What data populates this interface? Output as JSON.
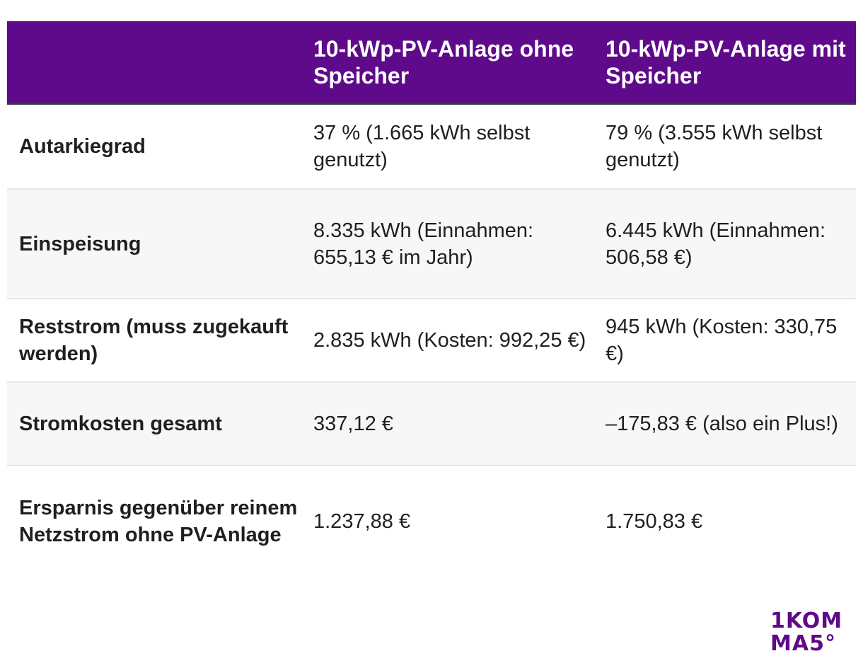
{
  "table": {
    "header": {
      "col1": "",
      "col2": "10-kWp-PV-Anlage ohne Speicher",
      "col3": "10-kWp-PV-Anlage mit Speicher"
    },
    "rows": [
      {
        "label": "Autarkiegrad",
        "ohne": "37 % (1.665 kWh selbst genutzt)",
        "mit": "79 % (3.555 kWh selbst genutzt)"
      },
      {
        "label": "Einspeisung",
        "ohne": "8.335 kWh (Einnahmen: 655,13 € im Jahr)",
        "mit": "6.445 kWh (Einnahmen: 506,58 €)"
      },
      {
        "label": "Reststrom (muss zugekauft werden)",
        "ohne": "2.835 kWh (Kosten: 992,25 €)",
        "mit": "945 kWh (Kosten: 330,75 €)"
      },
      {
        "label": "Stromkosten gesamt",
        "ohne": "337,12 €",
        "mit": "–175,83 € (also ein Plus!)"
      },
      {
        "label": "Ersparnis gegenüber reinem Netzstrom ohne PV-Anlage",
        "ohne": "1.237,88 €",
        "mit": "1.750,83 €"
      }
    ]
  },
  "logo": {
    "line1": "1KOM",
    "line2": "MA5°",
    "color": "#5e0a8a"
  },
  "colors": {
    "header_bg": "#5e0a8a",
    "header_text": "#ffffff",
    "alt_row_bg": "#f7f7f7"
  }
}
